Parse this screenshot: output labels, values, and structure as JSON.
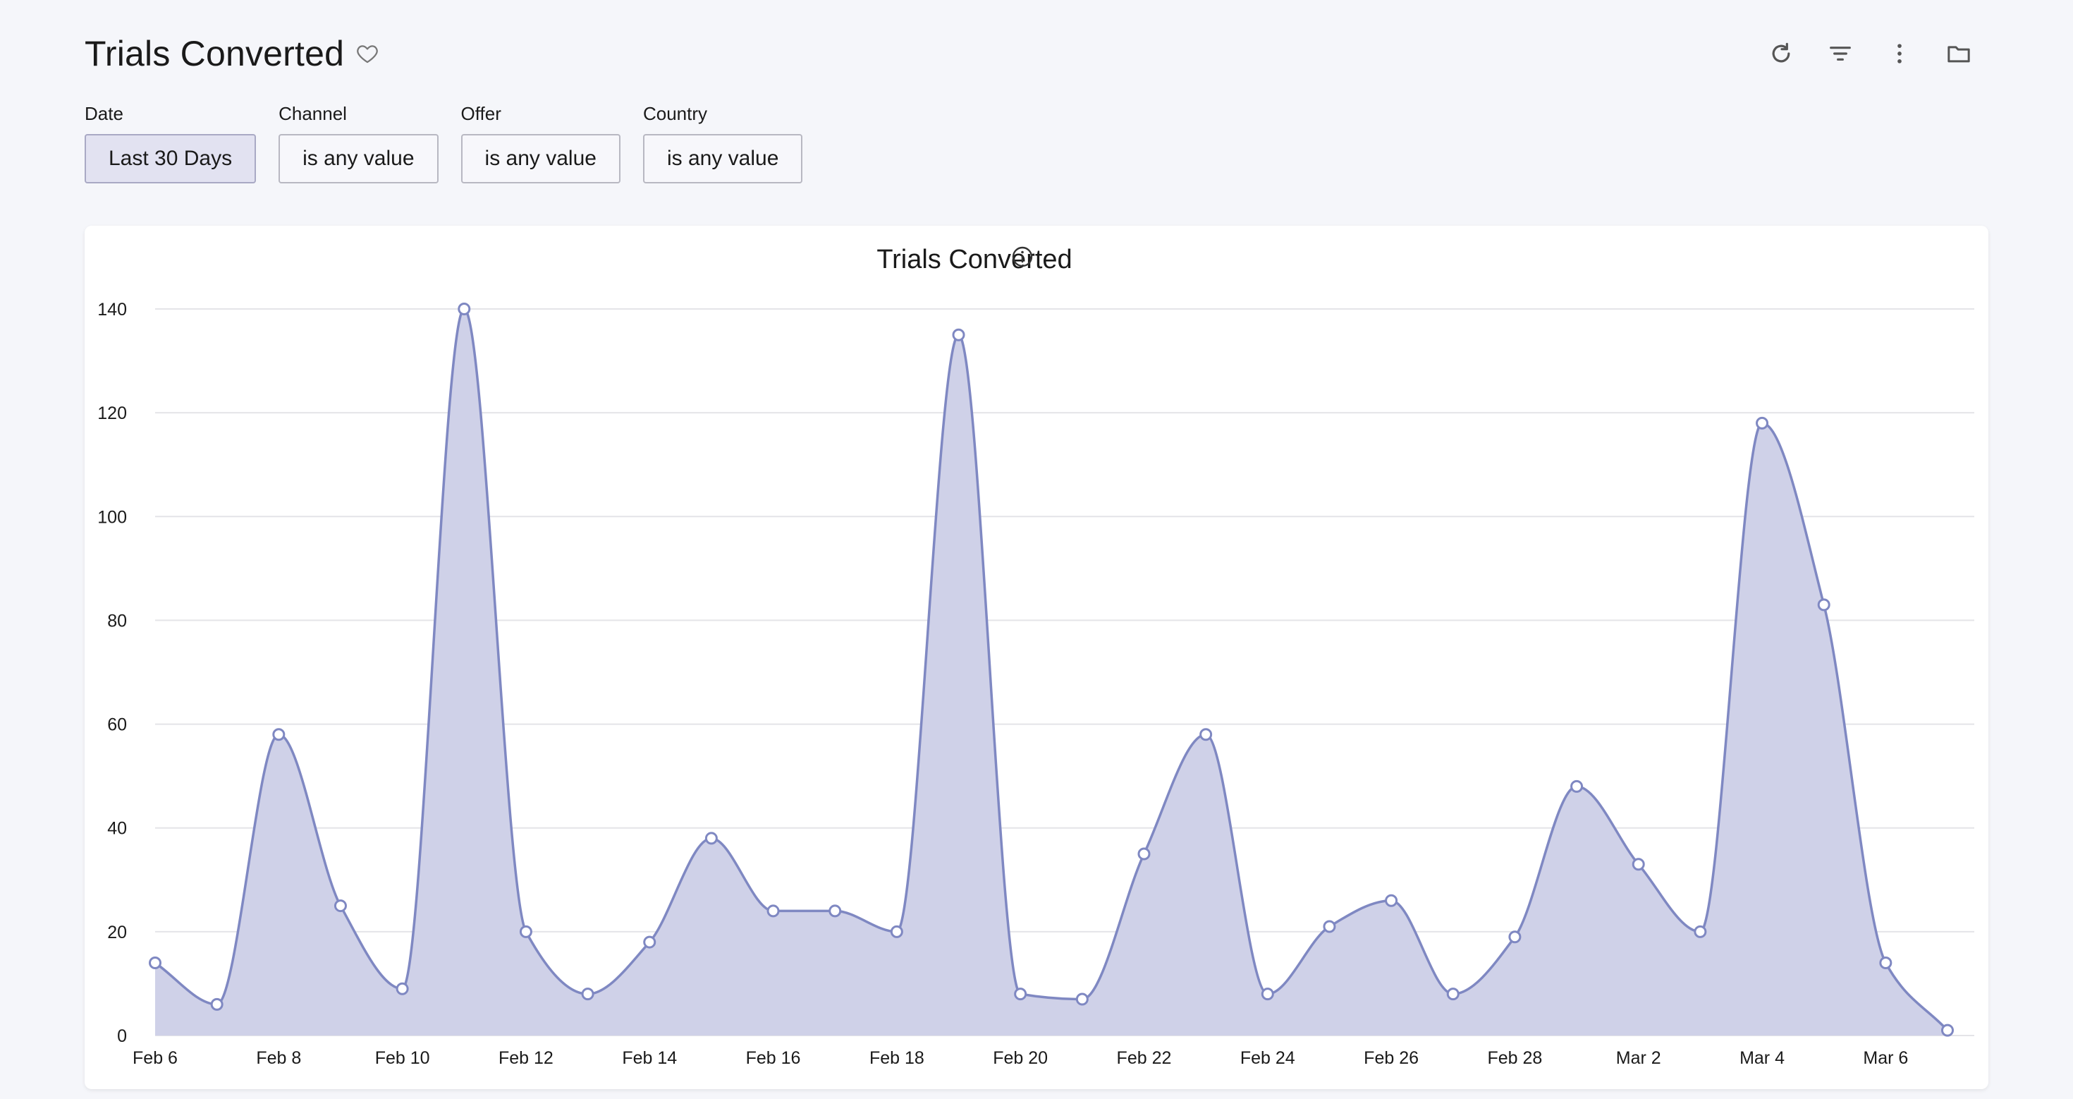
{
  "header": {
    "title": "Trials Converted"
  },
  "icons": {
    "favorite": "heart-icon",
    "refresh": "refresh-icon",
    "filter": "filter-icon",
    "more": "more-vertical-icon",
    "folder": "folder-icon",
    "info": "info-icon"
  },
  "filters": [
    {
      "label": "Date",
      "value": "Last 30 Days"
    },
    {
      "label": "Channel",
      "value": "is any value"
    },
    {
      "label": "Offer",
      "value": "is any value"
    },
    {
      "label": "Country",
      "value": "is any value"
    }
  ],
  "colors": {
    "line": "#7f88c2",
    "fill": "#cfd1e8",
    "grid": "#e4e4e8",
    "point_fill": "#ffffff"
  },
  "chart_data": {
    "type": "area",
    "title": "Trials Converted",
    "xlabel": "",
    "ylabel": "",
    "ylim": [
      0,
      140
    ],
    "yticks": [
      0,
      20,
      40,
      60,
      80,
      100,
      120,
      140
    ],
    "grid": true,
    "legend": "none",
    "x": [
      "Feb 6",
      "Feb 7",
      "Feb 8",
      "Feb 9",
      "Feb 10",
      "Feb 11",
      "Feb 12",
      "Feb 13",
      "Feb 14",
      "Feb 15",
      "Feb 16",
      "Feb 17",
      "Feb 18",
      "Feb 19",
      "Feb 20",
      "Feb 21",
      "Feb 22",
      "Feb 23",
      "Feb 24",
      "Feb 25",
      "Feb 26",
      "Feb 27",
      "Feb 28",
      "Mar 1",
      "Mar 2",
      "Mar 3",
      "Mar 4",
      "Mar 5",
      "Mar 6",
      "Mar 7"
    ],
    "x_tick_labels": [
      "Feb 6",
      "Feb 8",
      "Feb 10",
      "Feb 12",
      "Feb 14",
      "Feb 16",
      "Feb 18",
      "Feb 20",
      "Feb 22",
      "Feb 24",
      "Feb 26",
      "Feb 28",
      "Mar 2",
      "Mar 4",
      "Mar 6"
    ],
    "values": [
      14,
      6,
      58,
      25,
      9,
      140,
      20,
      8,
      18,
      38,
      24,
      24,
      20,
      135,
      8,
      7,
      35,
      58,
      8,
      21,
      26,
      8,
      19,
      48,
      33,
      20,
      118,
      83,
      14,
      1
    ]
  }
}
